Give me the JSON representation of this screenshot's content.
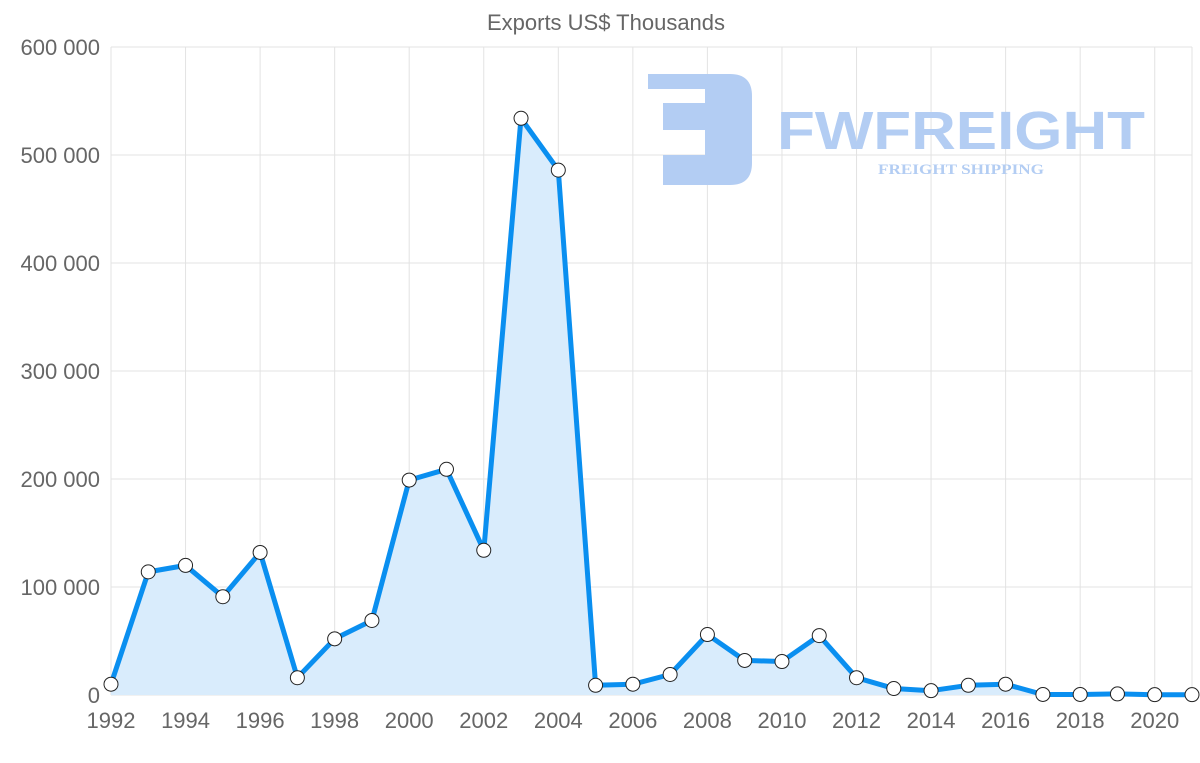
{
  "chart_data": {
    "type": "area",
    "title": "Exports US$ Thousands",
    "xlabel": "",
    "ylabel": "",
    "x": [
      1992,
      1993,
      1994,
      1995,
      1996,
      1997,
      1998,
      1999,
      2000,
      2001,
      2002,
      2003,
      2004,
      2005,
      2006,
      2007,
      2008,
      2009,
      2010,
      2011,
      2012,
      2013,
      2014,
      2015,
      2016,
      2017,
      2018,
      2019,
      2020,
      2021
    ],
    "values": [
      10000,
      114000,
      120000,
      91000,
      132000,
      16000,
      52000,
      69000,
      199000,
      209000,
      134000,
      534000,
      486000,
      9000,
      10000,
      19000,
      56000,
      32000,
      31000,
      55000,
      16000,
      6000,
      4000,
      9000,
      10000,
      500,
      500,
      1000,
      300,
      300
    ],
    "ylim": [
      0,
      600000
    ],
    "xlim": [
      1992,
      2021
    ],
    "y_ticks": [
      "0",
      "100 000",
      "200 000",
      "300 000",
      "400 000",
      "500 000",
      "600 000"
    ],
    "x_ticks": [
      "1992",
      "1994",
      "1996",
      "1998",
      "2000",
      "2002",
      "2004",
      "2006",
      "2008",
      "2010",
      "2012",
      "2014",
      "2016",
      "2018",
      "2020"
    ],
    "grid": true,
    "legend": "none",
    "colors": {
      "line": "#0a8ff0",
      "fill": "#d9ecfc",
      "grid": "#e3e3e3"
    }
  },
  "watermark": {
    "brand": "FWFREIGHT",
    "tagline": "FREIGHT SHIPPING",
    "color": "#b3cdf3"
  }
}
